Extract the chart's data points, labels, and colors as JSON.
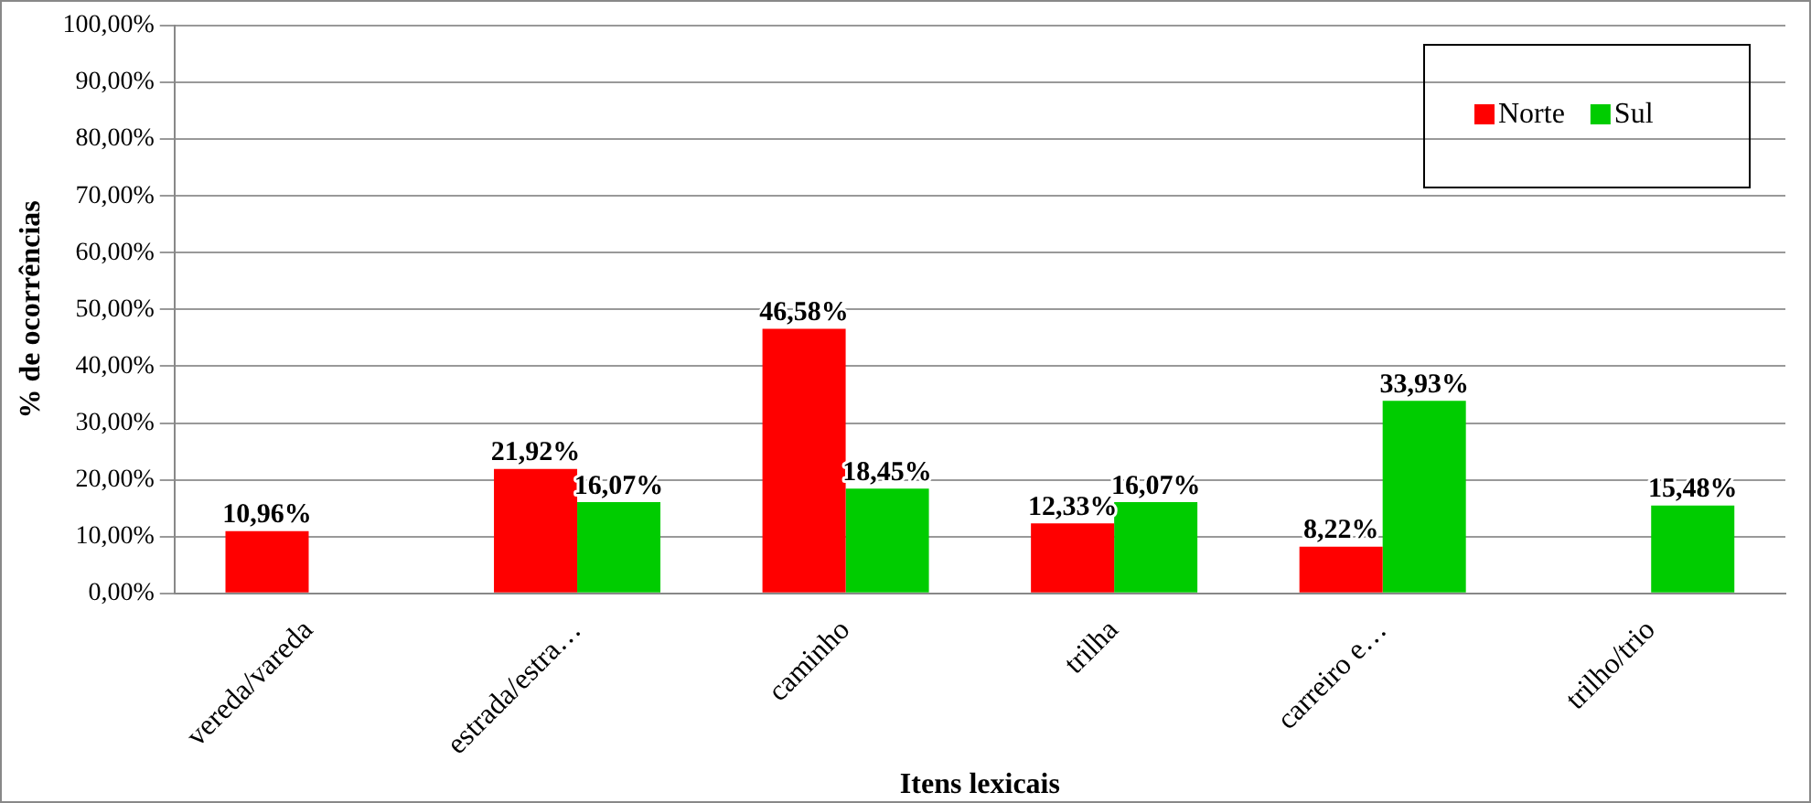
{
  "chart_data": {
    "type": "bar",
    "xlabel": "Itens lexicais",
    "ylabel": "% de ocorrências",
    "categories": [
      "vereda/vareda",
      "estrada/estra…",
      "caminho",
      "trilha",
      "carreiro e…",
      "trilho/trio"
    ],
    "series": [
      {
        "name": "Norte",
        "color": "#ff0000",
        "values": [
          10.96,
          21.92,
          46.58,
          12.33,
          8.22,
          null
        ],
        "value_labels": [
          "10,96%",
          "21,92%",
          "46,58%",
          "12,33%",
          "8,22%",
          null
        ]
      },
      {
        "name": "Sul",
        "color": "#00cc00",
        "values": [
          null,
          16.07,
          18.45,
          16.07,
          33.93,
          15.48
        ],
        "value_labels": [
          null,
          "16,07%",
          "18,45%",
          "16,07%",
          "33,93%",
          "15,48%"
        ]
      }
    ],
    "ylim": [
      0,
      100
    ],
    "yticks": [
      {
        "value": 0,
        "label": "0,00%"
      },
      {
        "value": 10,
        "label": "10,00%"
      },
      {
        "value": 20,
        "label": "20,00%"
      },
      {
        "value": 30,
        "label": "30,00%"
      },
      {
        "value": 40,
        "label": "40,00%"
      },
      {
        "value": 50,
        "label": "50,00%"
      },
      {
        "value": 60,
        "label": "60,00%"
      },
      {
        "value": 70,
        "label": "70,00%"
      },
      {
        "value": 80,
        "label": "80,00%"
      },
      {
        "value": 90,
        "label": "90,00%"
      },
      {
        "value": 100,
        "label": "100,00%"
      }
    ],
    "grid": "y",
    "legend": "top right"
  }
}
